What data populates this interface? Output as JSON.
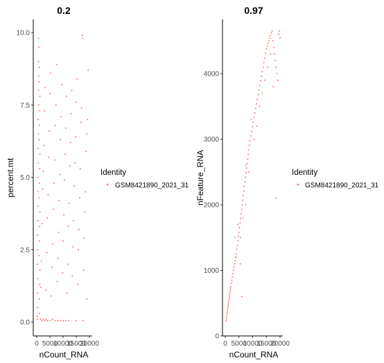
{
  "chart_data": [
    {
      "type": "scatter",
      "title": "0.2",
      "xlabel": "nCount_RNA",
      "ylabel": "percent.mt",
      "xlim": [
        0,
        20000
      ],
      "ylim": [
        0,
        10
      ],
      "x_ticks": [
        0,
        5000,
        10000,
        15000,
        20000
      ],
      "x_tick_labels": [
        "0",
        "5000",
        "10000",
        "15000",
        "20000"
      ],
      "y_ticks": [
        0,
        2.5,
        5,
        7.5,
        10
      ],
      "y_tick_labels": [
        "0.0",
        "2.5",
        "5.0",
        "7.5",
        "10.0"
      ],
      "grid": false,
      "legend_title": "Identity",
      "legend_position": "right",
      "series": [
        {
          "name": "GSM8421890_2021_31",
          "color": "#F8766D",
          "points": [
            [
              200,
              0.1
            ],
            [
              300,
              0.2
            ],
            [
              250,
              0.5
            ],
            [
              350,
              1.0
            ],
            [
              400,
              1.5
            ],
            [
              300,
              2.0
            ],
            [
              450,
              2.5
            ],
            [
              350,
              3.0
            ],
            [
              500,
              3.5
            ],
            [
              400,
              4.0
            ],
            [
              550,
              4.5
            ],
            [
              450,
              5.0
            ],
            [
              600,
              5.5
            ],
            [
              500,
              6.0
            ],
            [
              650,
              6.5
            ],
            [
              550,
              7.0
            ],
            [
              700,
              7.5
            ],
            [
              600,
              8.0
            ],
            [
              750,
              8.5
            ],
            [
              650,
              9.0
            ],
            [
              800,
              9.5
            ],
            [
              700,
              9.8
            ],
            [
              900,
              0.3
            ],
            [
              1000,
              0.8
            ],
            [
              1100,
              1.3
            ],
            [
              1200,
              1.8
            ],
            [
              900,
              2.3
            ],
            [
              1000,
              2.8
            ],
            [
              1100,
              3.3
            ],
            [
              1200,
              3.8
            ],
            [
              900,
              4.3
            ],
            [
              1000,
              4.8
            ],
            [
              1100,
              5.3
            ],
            [
              1200,
              5.8
            ],
            [
              900,
              6.3
            ],
            [
              1000,
              6.8
            ],
            [
              1100,
              7.3
            ],
            [
              1200,
              7.8
            ],
            [
              900,
              8.3
            ],
            [
              1000,
              8.8
            ],
            [
              1500,
              0.1
            ],
            [
              2000,
              0.05
            ],
            [
              2500,
              0.1
            ],
            [
              3000,
              0.05
            ],
            [
              3500,
              0.1
            ],
            [
              4000,
              0.05
            ],
            [
              5000,
              0.05
            ],
            [
              6000,
              0.1
            ],
            [
              7000,
              0.05
            ],
            [
              8000,
              0.05
            ],
            [
              9000,
              0.05
            ],
            [
              10000,
              0.05
            ],
            [
              11000,
              0.05
            ],
            [
              12000,
              0.05
            ],
            [
              15000,
              0.05
            ],
            [
              17500,
              0.05
            ],
            [
              1500,
              1.2
            ],
            [
              1800,
              2.1
            ],
            [
              2000,
              3.4
            ],
            [
              2200,
              4.6
            ],
            [
              2500,
              5.2
            ],
            [
              2800,
              6.1
            ],
            [
              3000,
              7.3
            ],
            [
              3200,
              8.1
            ],
            [
              3500,
              1.1
            ],
            [
              3800,
              2.4
            ],
            [
              4000,
              3.6
            ],
            [
              4300,
              4.4
            ],
            [
              4500,
              5.7
            ],
            [
              4800,
              6.6
            ],
            [
              5000,
              7.9
            ],
            [
              5300,
              8.6
            ],
            [
              5500,
              0.9
            ],
            [
              5800,
              1.9
            ],
            [
              6000,
              2.7
            ],
            [
              6300,
              3.9
            ],
            [
              6500,
              4.8
            ],
            [
              6800,
              5.6
            ],
            [
              7000,
              6.8
            ],
            [
              7300,
              7.5
            ],
            [
              7500,
              8.9
            ],
            [
              7800,
              1.4
            ],
            [
              8000,
              2.2
            ],
            [
              8300,
              3.1
            ],
            [
              8500,
              4.2
            ],
            [
              8800,
              5.1
            ],
            [
              9000,
              6.3
            ],
            [
              9300,
              7.1
            ],
            [
              9500,
              8.2
            ],
            [
              9800,
              1.7
            ],
            [
              10000,
              2.8
            ],
            [
              10300,
              3.7
            ],
            [
              10500,
              4.9
            ],
            [
              10800,
              5.8
            ],
            [
              11000,
              6.7
            ],
            [
              11300,
              7.8
            ],
            [
              11500,
              1.0
            ],
            [
              11800,
              2.0
            ],
            [
              12000,
              3.3
            ],
            [
              12300,
              4.1
            ],
            [
              12500,
              5.4
            ],
            [
              12800,
              6.2
            ],
            [
              13000,
              7.2
            ],
            [
              13300,
              8.0
            ],
            [
              13500,
              1.6
            ],
            [
              13800,
              2.6
            ],
            [
              14000,
              3.5
            ],
            [
              14300,
              4.7
            ],
            [
              14500,
              5.5
            ],
            [
              14800,
              6.4
            ],
            [
              15000,
              7.6
            ],
            [
              15300,
              8.4
            ],
            [
              15500,
              1.3
            ],
            [
              15800,
              2.5
            ],
            [
              16000,
              3.2
            ],
            [
              16300,
              4.3
            ],
            [
              16500,
              5.3
            ],
            [
              16800,
              6.9
            ],
            [
              17000,
              7.4
            ],
            [
              17300,
              9.9
            ],
            [
              17500,
              9.8
            ],
            [
              17800,
              1.8
            ],
            [
              18000,
              2.9
            ],
            [
              18300,
              3.8
            ],
            [
              18500,
              4.5
            ],
            [
              18800,
              5.9
            ],
            [
              19000,
              6.5
            ],
            [
              19300,
              7.0
            ],
            [
              19500,
              8.7
            ],
            [
              19000,
              0.8
            ]
          ]
        }
      ]
    },
    {
      "type": "scatter",
      "title": "0.97",
      "xlabel": "nCount_RNA",
      "ylabel": "nFeature_RNA",
      "xlim": [
        0,
        20000
      ],
      "ylim": [
        0,
        4700
      ],
      "x_ticks": [
        0,
        5000,
        10000,
        15000,
        20000
      ],
      "x_tick_labels": [
        "0",
        "5000",
        "10000",
        "15000",
        "20000"
      ],
      "y_ticks": [
        0,
        1000,
        2000,
        3000,
        4000
      ],
      "y_tick_labels": [
        "0",
        "1000",
        "2000",
        "3000",
        "4000"
      ],
      "grid": false,
      "legend_title": "Identity",
      "legend_position": "right",
      "series": [
        {
          "name": "GSM8421890_2021_31",
          "color": "#F8766D",
          "points": [
            [
              300,
              230
            ],
            [
              400,
              260
            ],
            [
              500,
              290
            ],
            [
              600,
              330
            ],
            [
              700,
              360
            ],
            [
              800,
              390
            ],
            [
              900,
              420
            ],
            [
              1000,
              450
            ],
            [
              1100,
              480
            ],
            [
              1200,
              510
            ],
            [
              1300,
              540
            ],
            [
              1400,
              570
            ],
            [
              1500,
              600
            ],
            [
              1600,
              630
            ],
            [
              1700,
              660
            ],
            [
              1800,
              690
            ],
            [
              1900,
              720
            ],
            [
              2000,
              750
            ],
            [
              2200,
              800
            ],
            [
              2400,
              850
            ],
            [
              2600,
              900
            ],
            [
              2800,
              950
            ],
            [
              3000,
              1000
            ],
            [
              3200,
              1050
            ],
            [
              3400,
              1100
            ],
            [
              3600,
              1150
            ],
            [
              3800,
              1200
            ],
            [
              4000,
              1250
            ],
            [
              4200,
              1320
            ],
            [
              4400,
              1380
            ],
            [
              4600,
              1450
            ],
            [
              4800,
              1520
            ],
            [
              5000,
              1580
            ],
            [
              5200,
              1650
            ],
            [
              5400,
              1720
            ],
            [
              5600,
              1790
            ],
            [
              5800,
              1860
            ],
            [
              6000,
              1930
            ],
            [
              6200,
              2000
            ],
            [
              6400,
              2070
            ],
            [
              6600,
              2140
            ],
            [
              6800,
              2210
            ],
            [
              7000,
              2280
            ],
            [
              7200,
              2350
            ],
            [
              7400,
              2420
            ],
            [
              7600,
              2490
            ],
            [
              7800,
              2560
            ],
            [
              8000,
              2630
            ],
            [
              8200,
              2700
            ],
            [
              8400,
              2770
            ],
            [
              8600,
              2840
            ],
            [
              8800,
              2910
            ],
            [
              9000,
              2980
            ],
            [
              9300,
              3050
            ],
            [
              9600,
              3120
            ],
            [
              9900,
              3190
            ],
            [
              10200,
              3260
            ],
            [
              10500,
              3330
            ],
            [
              10800,
              3400
            ],
            [
              11100,
              3470
            ],
            [
              11400,
              3540
            ],
            [
              11700,
              3610
            ],
            [
              12000,
              3680
            ],
            [
              12300,
              3750
            ],
            [
              12600,
              3820
            ],
            [
              12900,
              3890
            ],
            [
              13200,
              3960
            ],
            [
              13500,
              4030
            ],
            [
              13800,
              4100
            ],
            [
              14100,
              4170
            ],
            [
              14400,
              4240
            ],
            [
              14700,
              4310
            ],
            [
              15000,
              4380
            ],
            [
              15300,
              4420
            ],
            [
              15600,
              4460
            ],
            [
              15900,
              4500
            ],
            [
              16200,
              4540
            ],
            [
              16500,
              4580
            ],
            [
              16800,
              4620
            ],
            [
              17100,
              4650
            ],
            [
              17400,
              4500
            ],
            [
              17700,
              4400
            ],
            [
              18000,
              4300
            ],
            [
              18300,
              4200
            ],
            [
              18600,
              4100
            ],
            [
              18900,
              4000
            ],
            [
              19200,
              3900
            ],
            [
              19500,
              4600
            ],
            [
              19800,
              4650
            ],
            [
              20000,
              4550
            ],
            [
              3500,
              1500
            ],
            [
              4500,
              1700
            ],
            [
              5500,
              1500
            ],
            [
              6500,
              1800
            ],
            [
              7500,
              2600
            ],
            [
              8500,
              2500
            ],
            [
              9500,
              3300
            ],
            [
              10500,
              3000
            ],
            [
              11500,
              3200
            ],
            [
              12500,
              3500
            ],
            [
              13500,
              3700
            ],
            [
              14500,
              3900
            ],
            [
              15500,
              4100
            ],
            [
              16500,
              4300
            ],
            [
              17500,
              3800
            ],
            [
              18500,
              2100
            ],
            [
              6000,
              600
            ],
            [
              4000,
              1200
            ],
            [
              5500,
              1100
            ],
            [
              7500,
              2000
            ]
          ]
        }
      ]
    }
  ]
}
